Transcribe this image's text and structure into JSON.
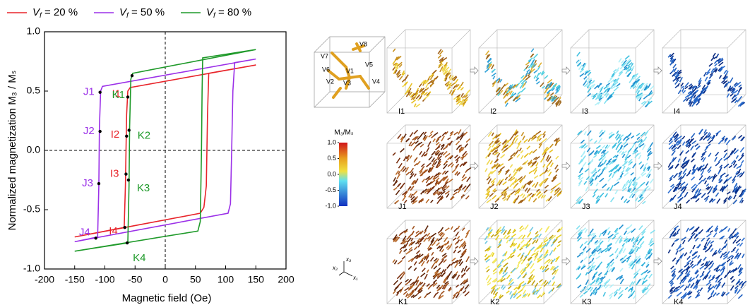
{
  "chart_data": {
    "type": "line",
    "xlabel": "Magnetic field (Oe)",
    "ylabel": "Normalized magnetization M₃ / Mₛ",
    "xlim": [
      -200,
      200
    ],
    "ylim": [
      -1,
      1
    ],
    "xticks": [
      -200,
      -150,
      -100,
      -50,
      0,
      50,
      100,
      150,
      200
    ],
    "yticks": [
      {
        "value": 1,
        "label": "1.0"
      },
      {
        "value": 0.5,
        "label": "0.5"
      },
      {
        "value": 0,
        "label": "0.0"
      },
      {
        "value": -0.5,
        "label": "-0.5"
      },
      {
        "value": -1,
        "label": "-1.0"
      }
    ],
    "series": [
      {
        "name": "Vf = 20 %",
        "color": "#e8242a",
        "x": [
          150,
          -58,
          -62,
          -64,
          -66,
          -68,
          -150,
          58,
          64,
          68,
          70,
          72,
          150
        ],
        "values": [
          0.72,
          0.53,
          0.5,
          0.3,
          -0.3,
          -0.65,
          -0.73,
          -0.53,
          -0.48,
          -0.3,
          0.3,
          0.65,
          0.72
        ],
        "points": [
          {
            "label": "I1",
            "x": -62,
            "y": 0.45
          },
          {
            "label": "I2",
            "x": -64,
            "y": 0.12
          },
          {
            "label": "I3",
            "x": -65,
            "y": -0.2
          },
          {
            "label": "I4",
            "x": -67,
            "y": -0.65
          }
        ]
      },
      {
        "name": "Vf = 50 %",
        "color": "#9b30e8",
        "x": [
          150,
          -104,
          -107,
          -109,
          -110,
          -112,
          -150,
          104,
          108,
          110,
          112,
          115,
          150
        ],
        "values": [
          0.77,
          0.54,
          0.5,
          0.2,
          -0.3,
          -0.73,
          -0.77,
          -0.53,
          -0.45,
          0.0,
          0.5,
          0.74,
          0.77
        ],
        "points": [
          {
            "label": "J1",
            "x": -108,
            "y": 0.49
          },
          {
            "label": "J2",
            "x": -108,
            "y": 0.16
          },
          {
            "label": "J3",
            "x": -110,
            "y": -0.28
          },
          {
            "label": "J4",
            "x": -115,
            "y": -0.74
          }
        ]
      },
      {
        "name": "Vf = 80 %",
        "color": "#1f9a2a",
        "x": [
          150,
          -54,
          -57,
          -59,
          -60,
          -62,
          -150,
          54,
          58,
          60,
          61,
          62,
          150
        ],
        "values": [
          0.85,
          0.65,
          0.6,
          0.2,
          -0.3,
          -0.78,
          -0.85,
          -0.68,
          -0.6,
          0.0,
          0.5,
          0.78,
          0.85
        ],
        "points": [
          {
            "label": "K1",
            "x": -55,
            "y": 0.63
          },
          {
            "label": "K2",
            "x": -60,
            "y": 0.17
          },
          {
            "label": "K3",
            "x": -61,
            "y": -0.25
          },
          {
            "label": "K4",
            "x": -63,
            "y": -0.78
          }
        ]
      }
    ]
  },
  "schematic": {
    "labels": [
      "V8",
      "V7",
      "V6",
      "V1",
      "V5",
      "V2",
      "V3",
      "V4"
    ]
  },
  "colorbar": {
    "title": "M₃/Mₛ",
    "lim": [
      -1,
      1
    ],
    "ticks": [
      {
        "value": 1,
        "label": "1.0"
      },
      {
        "value": 0.5,
        "label": "0.5"
      },
      {
        "value": 0,
        "label": "0.0"
      },
      {
        "value": -0.5,
        "label": "-0.5"
      },
      {
        "value": -1,
        "label": "-1.0"
      }
    ]
  },
  "triad": {
    "labels": [
      "x₃",
      "x₂",
      "x₁"
    ]
  },
  "panels": [
    [
      "I1",
      "I2",
      "I3",
      "I4"
    ],
    [
      "J1",
      "J2",
      "J3",
      "J4"
    ],
    [
      "K1",
      "K2",
      "K3",
      "K4"
    ]
  ]
}
